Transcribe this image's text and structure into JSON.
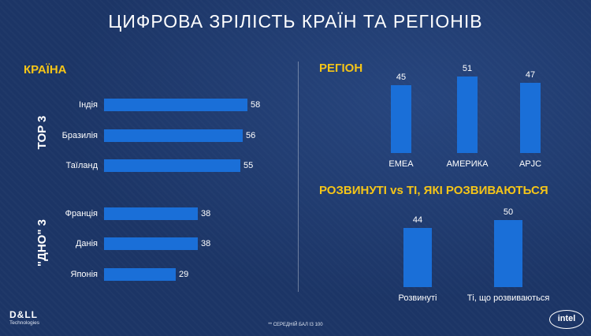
{
  "title": "ЦИФРОВА ЗРІЛІСТЬ КРАЇН ТА РЕГІОНІВ",
  "footnote": "** СЕРЕДНІЙ БАЛ ІЗ 100",
  "logos": {
    "dell_mark": "D&LL",
    "dell_sub": "Technologies",
    "intel": "intel"
  },
  "colors": {
    "background": "#1c3566",
    "bar": "#1a6fd8",
    "heading": "#f5c518"
  },
  "chart_data": [
    {
      "type": "bar",
      "orientation": "horizontal",
      "title": "КРАЇНА",
      "groups": [
        {
          "name": "TOP 3",
          "categories": [
            "Індія",
            "Бразилія",
            "Таїланд"
          ],
          "values": [
            58,
            56,
            55
          ]
        },
        {
          "name": "\"ДНО\" 3",
          "categories": [
            "Франція",
            "Данія",
            "Японія"
          ],
          "values": [
            38,
            38,
            29
          ]
        }
      ],
      "grid": false
    },
    {
      "type": "bar",
      "title": "РЕГІОН",
      "categories": [
        "EMEA",
        "АМЕРИКА",
        "APJC"
      ],
      "values": [
        45,
        51,
        47
      ],
      "grid": false
    },
    {
      "type": "bar",
      "title": "РОЗВИНУТІ vs ТІ, ЯКІ РОЗВИВАЮТЬСЯ",
      "categories": [
        "Розвинуті",
        "Ті, що розвиваються"
      ],
      "values": [
        44,
        50
      ],
      "grid": false
    }
  ]
}
